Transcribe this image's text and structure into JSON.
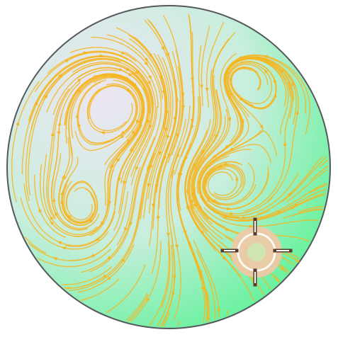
{
  "colors": {
    "background": "#ffffff",
    "disc_outline": "#55585c",
    "disc_gradient_light": "#ece6f2",
    "disc_gradient_mid": "#c8eedd",
    "disc_gradient_strong": "#62f29a",
    "flow_lines": "#f5b624",
    "target_ring": "#f0c9a6",
    "target_core": "#cfe6b2",
    "target_crosshair": "#5a3a2c"
  },
  "icons": {
    "target": "crosshair-target-icon"
  }
}
